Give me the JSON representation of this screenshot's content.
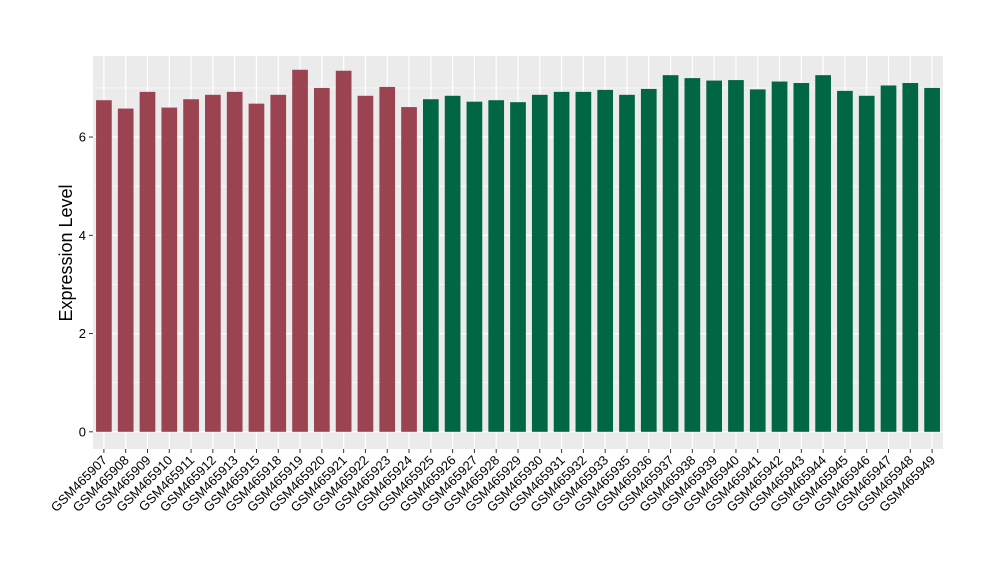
{
  "chart_data": {
    "type": "bar",
    "ylabel": "Expression Level",
    "xlabel": "",
    "ylim": [
      -0.35,
      7.65
    ],
    "yticks": [
      0,
      2,
      4,
      6
    ],
    "grid": true,
    "categories": [
      "GSM465907",
      "GSM465908",
      "GSM465909",
      "GSM465910",
      "GSM465911",
      "GSM465912",
      "GSM465913",
      "GSM465915",
      "GSM465918",
      "GSM465919",
      "GSM465920",
      "GSM465921",
      "GSM465922",
      "GSM465923",
      "GSM465924",
      "GSM465925",
      "GSM465926",
      "GSM465927",
      "GSM465928",
      "GSM465929",
      "GSM465930",
      "GSM465931",
      "GSM465932",
      "GSM465933",
      "GSM465935",
      "GSM465936",
      "GSM465937",
      "GSM465938",
      "GSM465939",
      "GSM465940",
      "GSM465941",
      "GSM465942",
      "GSM465943",
      "GSM465944",
      "GSM465945",
      "GSM465946",
      "GSM465947",
      "GSM465948",
      "GSM465949"
    ],
    "values": [
      6.75,
      6.58,
      6.92,
      6.6,
      6.77,
      6.86,
      6.92,
      6.68,
      6.86,
      7.37,
      7.0,
      7.35,
      6.84,
      7.02,
      6.61,
      6.77,
      6.84,
      6.72,
      6.75,
      6.71,
      6.86,
      6.92,
      6.92,
      6.96,
      6.86,
      6.98,
      7.26,
      7.2,
      7.15,
      7.16,
      6.97,
      7.13,
      7.1,
      7.26,
      6.94,
      6.84,
      7.05,
      7.1,
      7.0
    ],
    "groups": [
      "g1",
      "g1",
      "g1",
      "g1",
      "g1",
      "g1",
      "g1",
      "g1",
      "g1",
      "g1",
      "g1",
      "g1",
      "g1",
      "g1",
      "g1",
      "g2",
      "g2",
      "g2",
      "g2",
      "g2",
      "g2",
      "g2",
      "g2",
      "g2",
      "g2",
      "g2",
      "g2",
      "g2",
      "g2",
      "g2",
      "g2",
      "g2",
      "g2",
      "g2",
      "g2",
      "g2",
      "g2",
      "g2",
      "g2"
    ],
    "colors": {
      "g1": "#9b4350",
      "g2": "#006644",
      "panel": "#ebebeb",
      "grid": "#ffffff"
    }
  }
}
